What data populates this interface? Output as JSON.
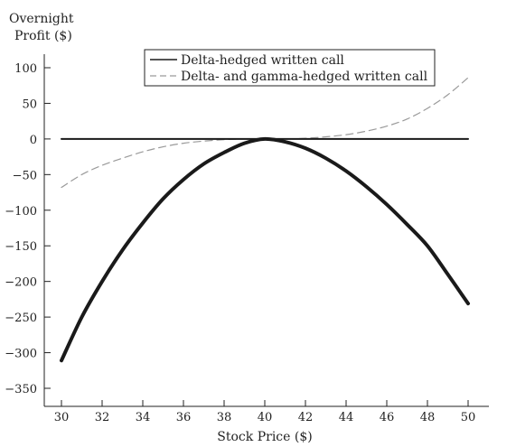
{
  "chart_data": {
    "type": "line",
    "title": "",
    "ylabel_line1": "Overnight",
    "ylabel_line2": "Profit ($)",
    "xlabel": "Stock Price ($)",
    "xlim": [
      30,
      50
    ],
    "ylim": [
      -350,
      100
    ],
    "x_ticks": [
      "30",
      "32",
      "34",
      "36",
      "38",
      "40",
      "42",
      "44",
      "46",
      "48",
      "50"
    ],
    "y_ticks": [
      "100",
      "50",
      "0",
      "−50",
      "−100",
      "−150",
      "−200",
      "−250",
      "−300",
      "−350"
    ],
    "grid": false,
    "legend_position": "top-center",
    "series": [
      {
        "name": "Delta-hedged written call",
        "color": "#1a1a1a",
        "style": "solid-thick",
        "x": [
          30,
          31,
          32,
          33,
          34,
          35,
          36,
          37,
          38,
          39,
          40,
          41,
          42,
          43,
          44,
          45,
          46,
          47,
          48,
          49,
          50
        ],
        "y": [
          -311,
          -250,
          -200,
          -156,
          -118,
          -84,
          -57,
          -35,
          -19,
          -6,
          0,
          -4,
          -13,
          -27,
          -45,
          -67,
          -92,
          -120,
          -150,
          -190,
          -231
        ]
      },
      {
        "name": "Delta- and gamma-hedged written call",
        "color": "#9a9a9a",
        "style": "dashed",
        "x": [
          30,
          31,
          32,
          33,
          34,
          35,
          36,
          37,
          38,
          39,
          40,
          41,
          42,
          43,
          44,
          45,
          46,
          47,
          48,
          49,
          50
        ],
        "y": [
          -68,
          -50,
          -37,
          -27,
          -18,
          -11,
          -6,
          -3,
          -1,
          0,
          0,
          0,
          1,
          3,
          6,
          11,
          18,
          28,
          43,
          62,
          86
        ]
      },
      {
        "name": "zero-line",
        "color": "#1a1a1a",
        "style": "solid-thin",
        "x": [
          30,
          50
        ],
        "y": [
          0,
          0
        ]
      }
    ]
  }
}
